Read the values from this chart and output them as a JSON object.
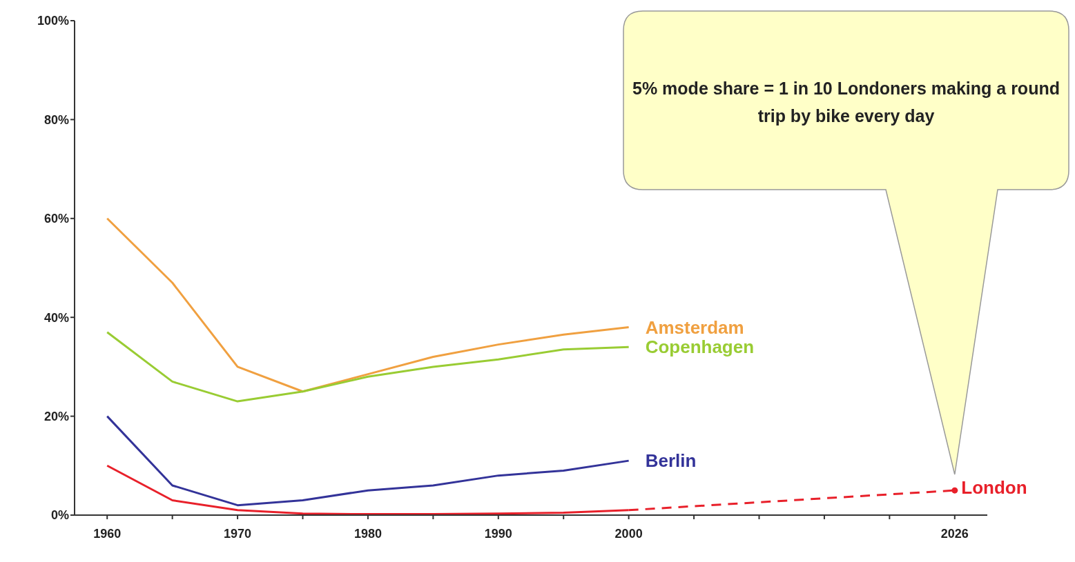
{
  "chart_data": {
    "type": "line",
    "categories": [
      "1960",
      null,
      "1970",
      null,
      "1980",
      null,
      "1990",
      null,
      "2000",
      null,
      null,
      null,
      null,
      "2026"
    ],
    "series": [
      {
        "name": "Amsterdam",
        "color": "#f0a040",
        "values": [
          60,
          47,
          30,
          25,
          28.5,
          32,
          34.5,
          36.5,
          38,
          null,
          null,
          null,
          null,
          null
        ]
      },
      {
        "name": "Copenhagen",
        "color": "#99cc33",
        "values": [
          37,
          27,
          23,
          25,
          28,
          30,
          31.5,
          33.5,
          34,
          null,
          null,
          null,
          null,
          null
        ]
      },
      {
        "name": "Berlin",
        "color": "#333399",
        "values": [
          20,
          6,
          2,
          3,
          5,
          6,
          8,
          9,
          11,
          null,
          null,
          null,
          null,
          null
        ]
      },
      {
        "color": "#e8202a",
        "values": [
          10,
          3,
          1,
          0.3,
          0.2,
          0.2,
          0.3,
          0.5,
          1,
          null,
          null,
          null,
          null,
          null
        ]
      },
      {
        "color": "#e8202a",
        "line_style": "dashed",
        "values": [
          null,
          null,
          null,
          null,
          null,
          null,
          null,
          null,
          1,
          null,
          null,
          null,
          null,
          5
        ]
      },
      {
        "name": "London",
        "type": "scatter",
        "marker": "circle",
        "color": "#e8202a",
        "values": [
          null,
          null,
          null,
          null,
          null,
          null,
          null,
          null,
          null,
          null,
          null,
          null,
          null,
          5
        ]
      }
    ],
    "ylim": [
      0,
      100
    ],
    "yticks": [
      {
        "value": 0,
        "label": "0%"
      },
      {
        "value": 20,
        "label": "20%"
      },
      {
        "value": 40,
        "label": "40%"
      },
      {
        "value": 60,
        "label": "60%"
      },
      {
        "value": 80,
        "label": "80%"
      },
      {
        "value": 100,
        "label": "100%"
      }
    ],
    "annotations": [
      "5% mode share = 1 in 10 Londoners making a round trip by bike every day"
    ],
    "grid": false,
    "legend": false,
    "marker": "none",
    "line_style": "solid"
  }
}
